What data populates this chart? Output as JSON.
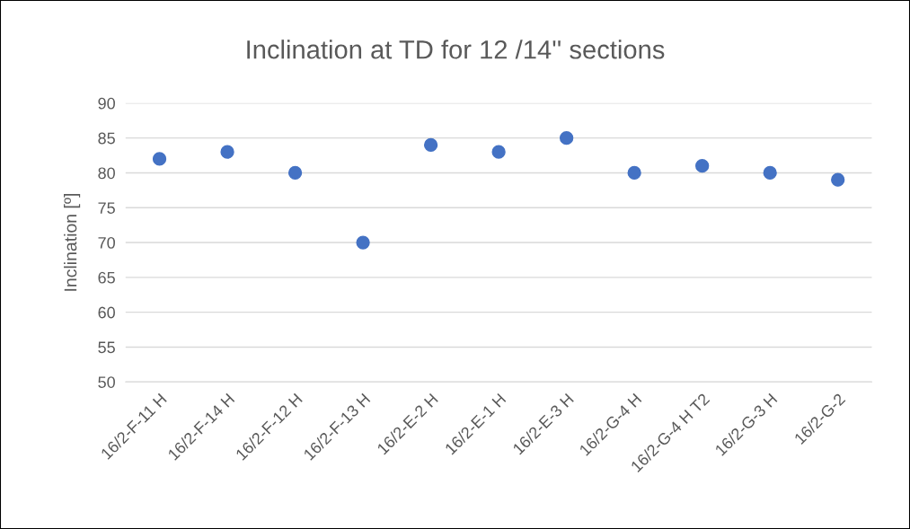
{
  "chart_data": {
    "type": "scatter",
    "title": "Inclination at TD for 12 /14'' sections",
    "ylabel": "Inclination [º]",
    "categories": [
      "16/2-F-11 H",
      "16/2-F-14 H",
      "16/2-F-12 H",
      "16/2-F-13 H",
      "16/2-E-2 H",
      "16/2-E-1 H",
      "16/2-E-3 H",
      "16/2-G-4 H",
      "16/2-G-4 H T2",
      "16/2-G-3 H",
      "16/2-G-2"
    ],
    "series": [
      {
        "color": "#4472c4",
        "values": [
          82,
          83,
          80,
          70,
          84,
          83,
          85,
          80,
          81,
          80,
          79
        ]
      }
    ],
    "ylim": [
      50,
      90
    ],
    "yticks": [
      50,
      55,
      60,
      65,
      70,
      75,
      80,
      85,
      90
    ],
    "grid": "y",
    "marker": "circle"
  }
}
